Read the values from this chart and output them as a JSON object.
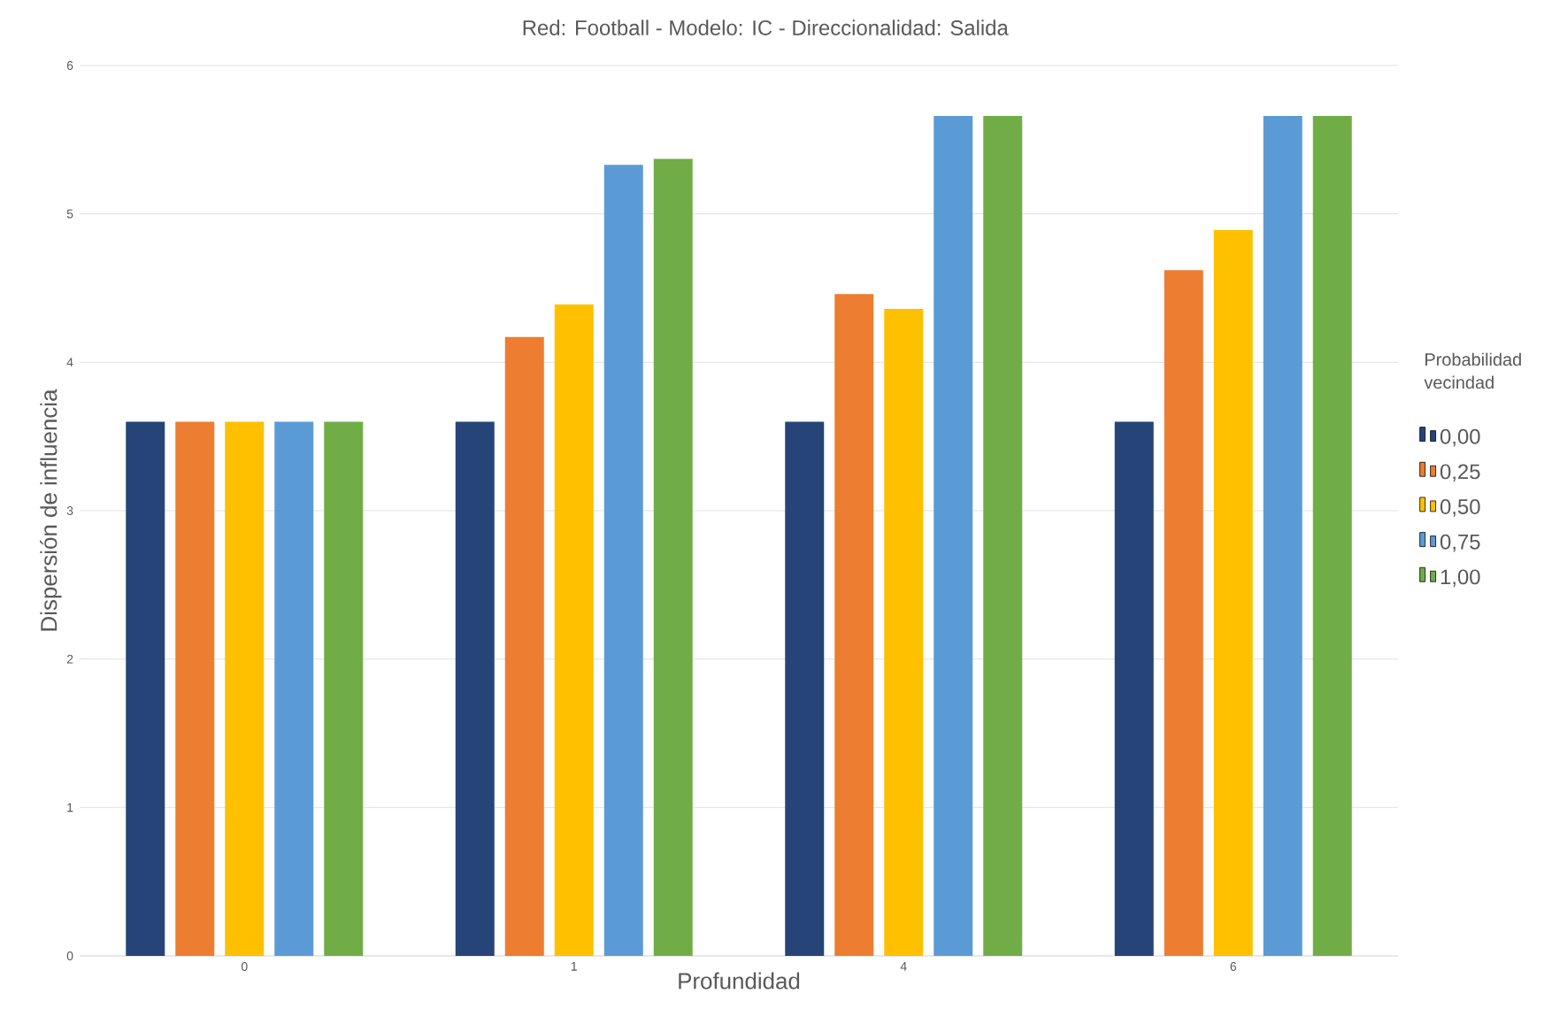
{
  "chart_data": {
    "type": "bar",
    "title": "Red: Football - Modelo: IC - Direccionalidad: Salida",
    "xlabel": "Profundidad",
    "ylabel": "Dispersión de influencia",
    "legend_title": "Probabilidad vecindad",
    "categories": [
      "0",
      "1",
      "4",
      "6"
    ],
    "series": [
      {
        "name": "0,00",
        "color": "#264478",
        "values": [
          3.6,
          3.6,
          3.6,
          3.6
        ]
      },
      {
        "name": "0,25",
        "color": "#ED7D31",
        "values": [
          3.6,
          4.17,
          4.46,
          4.62
        ]
      },
      {
        "name": "0,50",
        "color": "#FFC000",
        "values": [
          3.6,
          4.39,
          4.36,
          4.89
        ]
      },
      {
        "name": "0,75",
        "color": "#5B9BD5",
        "values": [
          3.6,
          5.33,
          5.66,
          5.66
        ]
      },
      {
        "name": "1,00",
        "color": "#70AD47",
        "values": [
          3.6,
          5.37,
          5.66,
          5.66
        ]
      }
    ],
    "ylim": [
      0,
      6
    ],
    "yticks": [
      0,
      1,
      2,
      3,
      4,
      5,
      6
    ],
    "grid": "y",
    "legend": "right"
  }
}
